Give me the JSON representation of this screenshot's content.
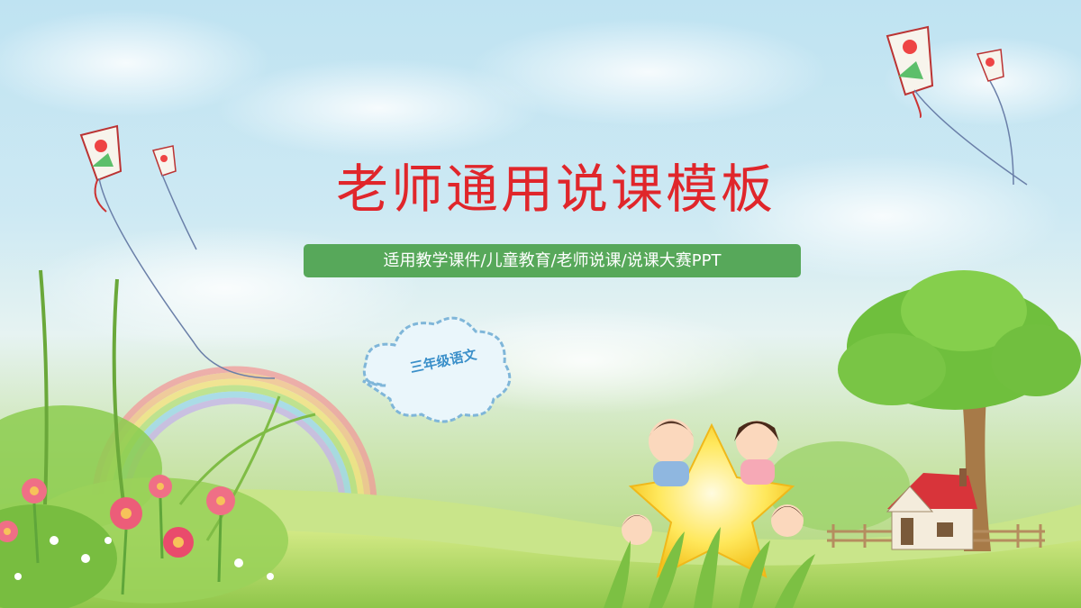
{
  "slide": {
    "title": "老师通用说课模板",
    "subtitle": "适用教学课件/儿童教育/老师说课/说课大赛PPT",
    "badge": "三年级语文"
  },
  "colors": {
    "title": "#e0262b",
    "subtitle_bg": "#57a85a",
    "badge_text": "#3a8fc9"
  },
  "icons": [
    "kite-icon",
    "rainbow-icon",
    "tree-icon",
    "house-icon",
    "star-icon",
    "flower-icon",
    "cloud-icon"
  ]
}
